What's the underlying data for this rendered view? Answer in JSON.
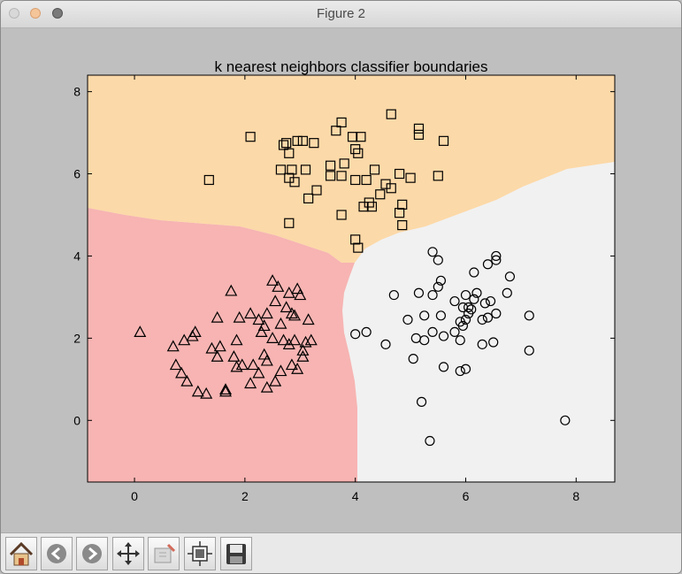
{
  "window": {
    "title": "Figure 2"
  },
  "toolbar": {
    "buttons": [
      {
        "name": "home-button",
        "icon": "home-icon"
      },
      {
        "name": "back-button",
        "icon": "back-arrow-icon"
      },
      {
        "name": "forward-button",
        "icon": "forward-arrow-icon"
      },
      {
        "name": "pan-button",
        "icon": "move-arrows-icon"
      },
      {
        "name": "zoom-button",
        "icon": "zoom-rect-icon"
      },
      {
        "name": "subplots-button",
        "icon": "subplots-icon"
      },
      {
        "name": "save-button",
        "icon": "floppy-disk-icon"
      }
    ]
  },
  "chart_data": {
    "type": "scatter",
    "title": "k nearest neighbors classifier boundaries",
    "xlabel": "",
    "ylabel": "",
    "xlim": [
      -0.85,
      8.7
    ],
    "ylim": [
      -1.5,
      8.4
    ],
    "xticks": [
      0,
      2,
      4,
      6,
      8
    ],
    "yticks": [
      0,
      2,
      4,
      6,
      8
    ],
    "grid": false,
    "region_colors": {
      "square": "#fcd9a8",
      "triangle": "#f7b4b2",
      "circle": "#f1f1f1"
    },
    "marker_edge_color": "#000000",
    "series": [
      {
        "marker": "square",
        "points": [
          [
            2.1,
            6.9
          ],
          [
            1.35,
            5.85
          ],
          [
            3.75,
            7.25
          ],
          [
            4.65,
            7.45
          ],
          [
            5.15,
            7.1
          ],
          [
            5.15,
            6.95
          ],
          [
            5.6,
            6.8
          ],
          [
            3.65,
            7.05
          ],
          [
            2.7,
            6.7
          ],
          [
            2.75,
            6.75
          ],
          [
            2.95,
            6.8
          ],
          [
            3.05,
            6.8
          ],
          [
            3.25,
            6.75
          ],
          [
            3.95,
            6.9
          ],
          [
            4.1,
            6.9
          ],
          [
            4.0,
            6.6
          ],
          [
            4.05,
            6.5
          ],
          [
            2.8,
            6.5
          ],
          [
            3.8,
            6.25
          ],
          [
            2.65,
            6.1
          ],
          [
            2.85,
            6.1
          ],
          [
            3.1,
            6.1
          ],
          [
            2.8,
            5.9
          ],
          [
            3.55,
            6.2
          ],
          [
            4.35,
            6.1
          ],
          [
            4.8,
            6.0
          ],
          [
            5.5,
            5.95
          ],
          [
            5.0,
            5.9
          ],
          [
            3.55,
            5.95
          ],
          [
            3.75,
            5.95
          ],
          [
            4.0,
            5.85
          ],
          [
            4.2,
            5.85
          ],
          [
            2.9,
            5.8
          ],
          [
            4.55,
            5.75
          ],
          [
            4.65,
            5.65
          ],
          [
            3.3,
            5.6
          ],
          [
            3.15,
            5.4
          ],
          [
            4.45,
            5.5
          ],
          [
            4.25,
            5.3
          ],
          [
            4.3,
            5.2
          ],
          [
            4.15,
            5.2
          ],
          [
            4.85,
            5.25
          ],
          [
            4.8,
            5.05
          ],
          [
            3.75,
            5.0
          ],
          [
            4.85,
            4.75
          ],
          [
            2.8,
            4.8
          ],
          [
            4.0,
            4.4
          ],
          [
            4.05,
            4.2
          ]
        ]
      },
      {
        "marker": "triangle",
        "points": [
          [
            0.1,
            2.15
          ],
          [
            0.7,
            1.8
          ],
          [
            0.9,
            1.95
          ],
          [
            1.05,
            2.05
          ],
          [
            0.75,
            1.35
          ],
          [
            0.85,
            1.15
          ],
          [
            0.95,
            0.95
          ],
          [
            1.15,
            0.7
          ],
          [
            1.3,
            0.65
          ],
          [
            1.65,
            0.75
          ],
          [
            1.65,
            0.7
          ],
          [
            1.1,
            2.15
          ],
          [
            1.5,
            2.5
          ],
          [
            1.75,
            3.15
          ],
          [
            1.55,
            1.8
          ],
          [
            1.5,
            1.55
          ],
          [
            1.4,
            1.75
          ],
          [
            1.9,
            2.5
          ],
          [
            2.1,
            2.6
          ],
          [
            2.25,
            2.45
          ],
          [
            1.85,
            1.95
          ],
          [
            1.8,
            1.55
          ],
          [
            1.95,
            1.35
          ],
          [
            1.85,
            1.3
          ],
          [
            2.15,
            1.35
          ],
          [
            2.1,
            0.9
          ],
          [
            2.25,
            1.15
          ],
          [
            2.4,
            0.8
          ],
          [
            2.35,
            2.3
          ],
          [
            2.3,
            2.15
          ],
          [
            2.5,
            2.0
          ],
          [
            2.4,
            2.6
          ],
          [
            2.55,
            2.9
          ],
          [
            2.6,
            3.25
          ],
          [
            2.5,
            3.4
          ],
          [
            2.8,
            3.1
          ],
          [
            2.95,
            3.2
          ],
          [
            3.0,
            3.05
          ],
          [
            2.75,
            2.75
          ],
          [
            2.85,
            2.6
          ],
          [
            2.9,
            2.55
          ],
          [
            3.15,
            2.45
          ],
          [
            2.65,
            2.35
          ],
          [
            2.7,
            1.95
          ],
          [
            2.8,
            1.85
          ],
          [
            2.9,
            1.95
          ],
          [
            3.1,
            1.9
          ],
          [
            3.2,
            1.95
          ],
          [
            3.05,
            1.7
          ],
          [
            2.35,
            1.6
          ],
          [
            2.4,
            1.45
          ],
          [
            2.65,
            1.2
          ],
          [
            2.95,
            1.25
          ],
          [
            2.85,
            1.35
          ],
          [
            3.05,
            1.55
          ],
          [
            2.55,
            0.95
          ]
        ]
      },
      {
        "marker": "circle",
        "points": [
          [
            5.4,
            4.1
          ],
          [
            5.5,
            3.9
          ],
          [
            6.55,
            4.0
          ],
          [
            6.55,
            3.9
          ],
          [
            6.4,
            3.8
          ],
          [
            6.15,
            3.6
          ],
          [
            6.8,
            3.5
          ],
          [
            5.55,
            3.4
          ],
          [
            5.5,
            3.25
          ],
          [
            4.7,
            3.05
          ],
          [
            5.15,
            3.1
          ],
          [
            5.4,
            3.05
          ],
          [
            5.8,
            2.9
          ],
          [
            5.95,
            2.75
          ],
          [
            6.0,
            3.05
          ],
          [
            6.2,
            3.1
          ],
          [
            6.15,
            2.95
          ],
          [
            6.35,
            2.85
          ],
          [
            6.45,
            2.9
          ],
          [
            6.75,
            3.1
          ],
          [
            6.55,
            2.6
          ],
          [
            6.1,
            2.7
          ],
          [
            6.05,
            2.75
          ],
          [
            6.4,
            2.5
          ],
          [
            6.3,
            2.45
          ],
          [
            7.15,
            2.55
          ],
          [
            5.55,
            2.55
          ],
          [
            5.25,
            2.55
          ],
          [
            4.95,
            2.45
          ],
          [
            5.1,
            2.0
          ],
          [
            5.4,
            2.15
          ],
          [
            5.6,
            2.05
          ],
          [
            5.8,
            2.15
          ],
          [
            5.9,
            2.4
          ],
          [
            5.95,
            2.3
          ],
          [
            6.0,
            2.45
          ],
          [
            6.05,
            2.6
          ],
          [
            4.0,
            2.1
          ],
          [
            4.2,
            2.15
          ],
          [
            4.55,
            1.85
          ],
          [
            5.25,
            1.95
          ],
          [
            5.9,
            1.95
          ],
          [
            6.3,
            1.85
          ],
          [
            6.5,
            1.9
          ],
          [
            7.15,
            1.7
          ],
          [
            5.05,
            1.5
          ],
          [
            5.6,
            1.3
          ],
          [
            5.9,
            1.2
          ],
          [
            6.0,
            1.25
          ],
          [
            5.2,
            0.45
          ],
          [
            5.35,
            -0.5
          ],
          [
            7.8,
            0.0
          ]
        ]
      }
    ]
  }
}
